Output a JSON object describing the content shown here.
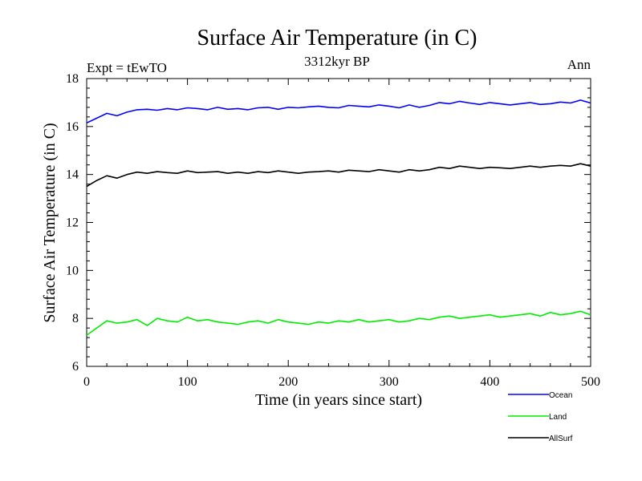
{
  "chart_data": {
    "type": "line",
    "title": "Surface Air Temperature (in C)",
    "subtitle": "3312kyr BP",
    "left_label": "Expt = tEwTO",
    "right_label": "Ann",
    "xlabel": "Time (in years since start)",
    "ylabel": "Surface Air Temperature (in C)",
    "xlim": [
      0,
      500
    ],
    "ylim": [
      6,
      18
    ],
    "x_ticks": [
      0,
      100,
      200,
      300,
      400,
      500
    ],
    "x_tick_labels": [
      "0",
      "100",
      "200",
      "300",
      "400",
      "500"
    ],
    "y_ticks": [
      6,
      8,
      10,
      12,
      14,
      16,
      18
    ],
    "y_tick_labels": [
      "6",
      "8",
      "10",
      "12",
      "14",
      "16",
      "18"
    ],
    "grid": false,
    "legend_position": "bottom-right",
    "x": [
      0,
      10,
      20,
      30,
      40,
      50,
      60,
      70,
      80,
      90,
      100,
      110,
      120,
      130,
      140,
      150,
      160,
      170,
      180,
      190,
      200,
      210,
      220,
      230,
      240,
      250,
      260,
      270,
      280,
      290,
      300,
      310,
      320,
      330,
      340,
      350,
      360,
      370,
      380,
      390,
      400,
      410,
      420,
      430,
      440,
      450,
      460,
      470,
      480,
      490,
      500
    ],
    "series": [
      {
        "name": "Ocean",
        "color": "#0000ff",
        "values": [
          16.15,
          16.35,
          16.55,
          16.45,
          16.6,
          16.7,
          16.72,
          16.68,
          16.75,
          16.7,
          16.78,
          16.75,
          16.7,
          16.8,
          16.72,
          16.75,
          16.7,
          16.78,
          16.8,
          16.72,
          16.8,
          16.78,
          16.82,
          16.85,
          16.8,
          16.78,
          16.88,
          16.85,
          16.82,
          16.9,
          16.85,
          16.78,
          16.9,
          16.8,
          16.88,
          17.0,
          16.95,
          17.05,
          16.98,
          16.92,
          17.0,
          16.95,
          16.9,
          16.95,
          17.0,
          16.92,
          16.95,
          17.02,
          16.98,
          17.1,
          16.98
        ]
      },
      {
        "name": "Land",
        "color": "#00ee00",
        "values": [
          7.3,
          7.6,
          7.9,
          7.8,
          7.85,
          7.95,
          7.7,
          8.0,
          7.9,
          7.85,
          8.05,
          7.9,
          7.95,
          7.85,
          7.8,
          7.75,
          7.85,
          7.9,
          7.8,
          7.95,
          7.85,
          7.8,
          7.75,
          7.85,
          7.8,
          7.9,
          7.85,
          7.95,
          7.85,
          7.9,
          7.95,
          7.85,
          7.9,
          8.0,
          7.95,
          8.05,
          8.1,
          8.0,
          8.05,
          8.1,
          8.15,
          8.05,
          8.1,
          8.15,
          8.2,
          8.1,
          8.25,
          8.15,
          8.2,
          8.3,
          8.15
        ]
      },
      {
        "name": "AllSurf",
        "color": "#000000",
        "values": [
          13.5,
          13.75,
          13.95,
          13.85,
          14.0,
          14.1,
          14.05,
          14.12,
          14.08,
          14.05,
          14.15,
          14.08,
          14.1,
          14.12,
          14.05,
          14.1,
          14.05,
          14.12,
          14.08,
          14.15,
          14.1,
          14.05,
          14.1,
          14.12,
          14.15,
          14.1,
          14.18,
          14.15,
          14.12,
          14.2,
          14.15,
          14.1,
          14.2,
          14.15,
          14.2,
          14.3,
          14.25,
          14.35,
          14.3,
          14.25,
          14.3,
          14.28,
          14.25,
          14.3,
          14.35,
          14.3,
          14.35,
          14.38,
          14.35,
          14.45,
          14.35
        ]
      }
    ]
  }
}
